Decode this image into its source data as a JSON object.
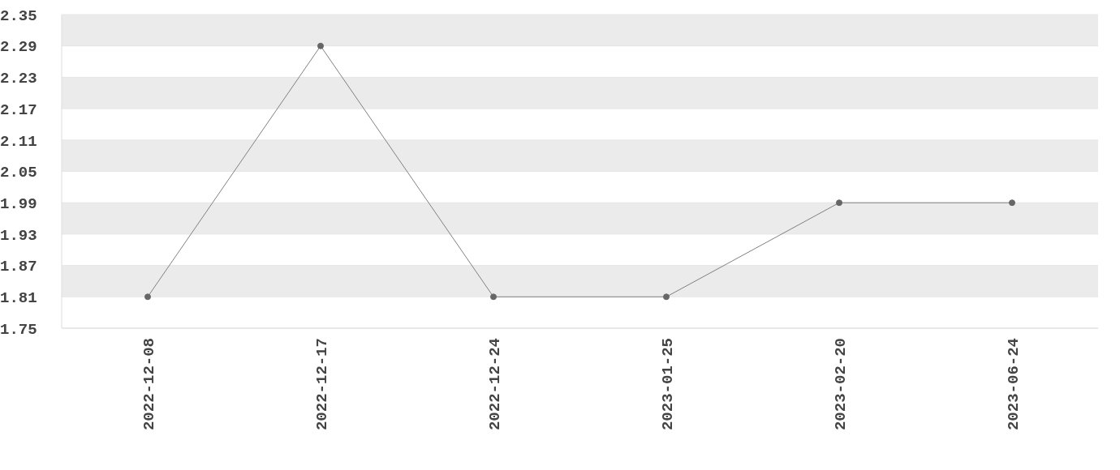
{
  "chart_data": {
    "type": "line",
    "categories": [
      "2022-12-08",
      "2022-12-17",
      "2022-12-24",
      "2023-01-25",
      "2023-02-20",
      "2023-06-24"
    ],
    "series": [
      {
        "color": "#808080",
        "values": [
          1.81,
          2.29,
          1.81,
          1.81,
          1.99,
          1.99
        ]
      }
    ],
    "ylim": [
      1.75,
      2.35
    ],
    "yticks": [
      1.75,
      1.81,
      1.87,
      1.93,
      1.99,
      2.05,
      2.11,
      2.17,
      2.23,
      2.29,
      2.35
    ],
    "grid": "y",
    "marker": "circle",
    "line_style": "solid",
    "legend": false
  }
}
